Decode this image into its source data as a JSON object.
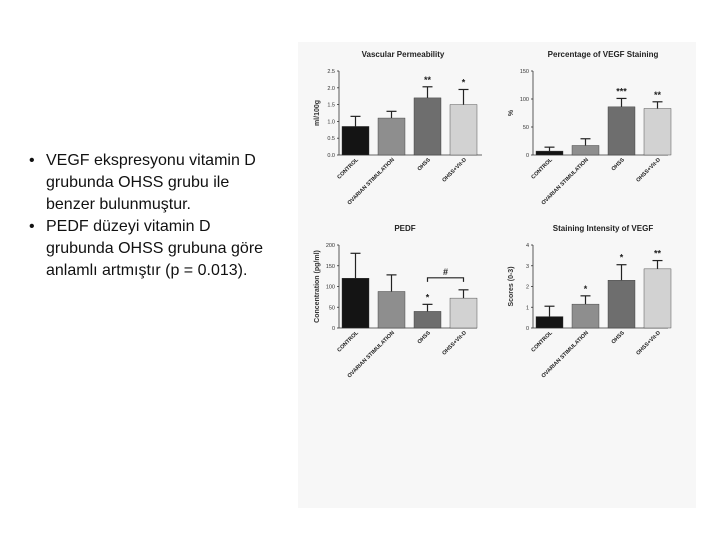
{
  "bullets": [
    "VEGF ekspresyonu vitamin D grubunda OHSS grubu ile benzer bulunmuştur.",
    "PEDF düzeyi vitamin D grubunda OHSS grubuna göre anlamlı artmıştır (p = 0.013)."
  ],
  "colors": [
    "#141414",
    "#8e8e8e",
    "#6e6e6e",
    "#d2d2d2"
  ],
  "chart_data": [
    {
      "type": "bar",
      "title": "Vascular Permeability",
      "ylabel": "ml/100g",
      "categories": [
        "CONTROL",
        "OVARIAN STIMULATION",
        "OHSS",
        "OHSS+Vit-D"
      ],
      "values": [
        0.85,
        1.1,
        1.7,
        1.5
      ],
      "errors": [
        0.3,
        0.2,
        0.33,
        0.45
      ],
      "annotations": [
        "",
        "",
        "**",
        "*"
      ],
      "ylim": [
        0,
        2.5
      ],
      "yticks": [
        "0.0",
        "0.5",
        "1.0",
        "1.5",
        "2.0",
        "2.5"
      ]
    },
    {
      "type": "bar",
      "title": "Percentage of VEGF Staining",
      "ylabel": "%",
      "categories": [
        "CONTROL",
        "OVARIAN STIMULATION",
        "OHSS",
        "OHSS+Vit-D"
      ],
      "values": [
        7,
        17,
        86,
        83
      ],
      "errors": [
        7,
        12,
        15,
        12
      ],
      "annotations": [
        "",
        "",
        "***",
        "**"
      ],
      "ylim": [
        0,
        150
      ],
      "yticks": [
        "0",
        "50",
        "100",
        "150"
      ]
    },
    {
      "type": "bar",
      "title": "PEDF",
      "ylabel": "Concentration (pg/ml)",
      "categories": [
        "CONTROL",
        "OVARIAN STIMULATION",
        "OHSS",
        "OHSS+Vit-D"
      ],
      "values": [
        120,
        88,
        40,
        72
      ],
      "errors": [
        60,
        40,
        17,
        20
      ],
      "annotations": [
        "",
        "",
        "*",
        ""
      ],
      "bracket": {
        "from": 2,
        "to": 3,
        "label": "#"
      },
      "ylim": [
        0,
        200
      ],
      "yticks": [
        "0",
        "50",
        "100",
        "150",
        "200"
      ]
    },
    {
      "type": "bar",
      "title": "Staining Intensity of VEGF",
      "ylabel": "Scores (0-3)",
      "categories": [
        "CONTROL",
        "OVARIAN STIMULATION",
        "OHSS",
        "OHSS+Vit-D"
      ],
      "values": [
        0.55,
        1.15,
        2.3,
        2.85
      ],
      "errors": [
        0.5,
        0.4,
        0.75,
        0.4
      ],
      "annotations": [
        "",
        "*",
        "*",
        "**"
      ],
      "ylim": [
        0,
        4
      ],
      "yticks": [
        "0",
        "1",
        "2",
        "3",
        "4"
      ]
    }
  ]
}
